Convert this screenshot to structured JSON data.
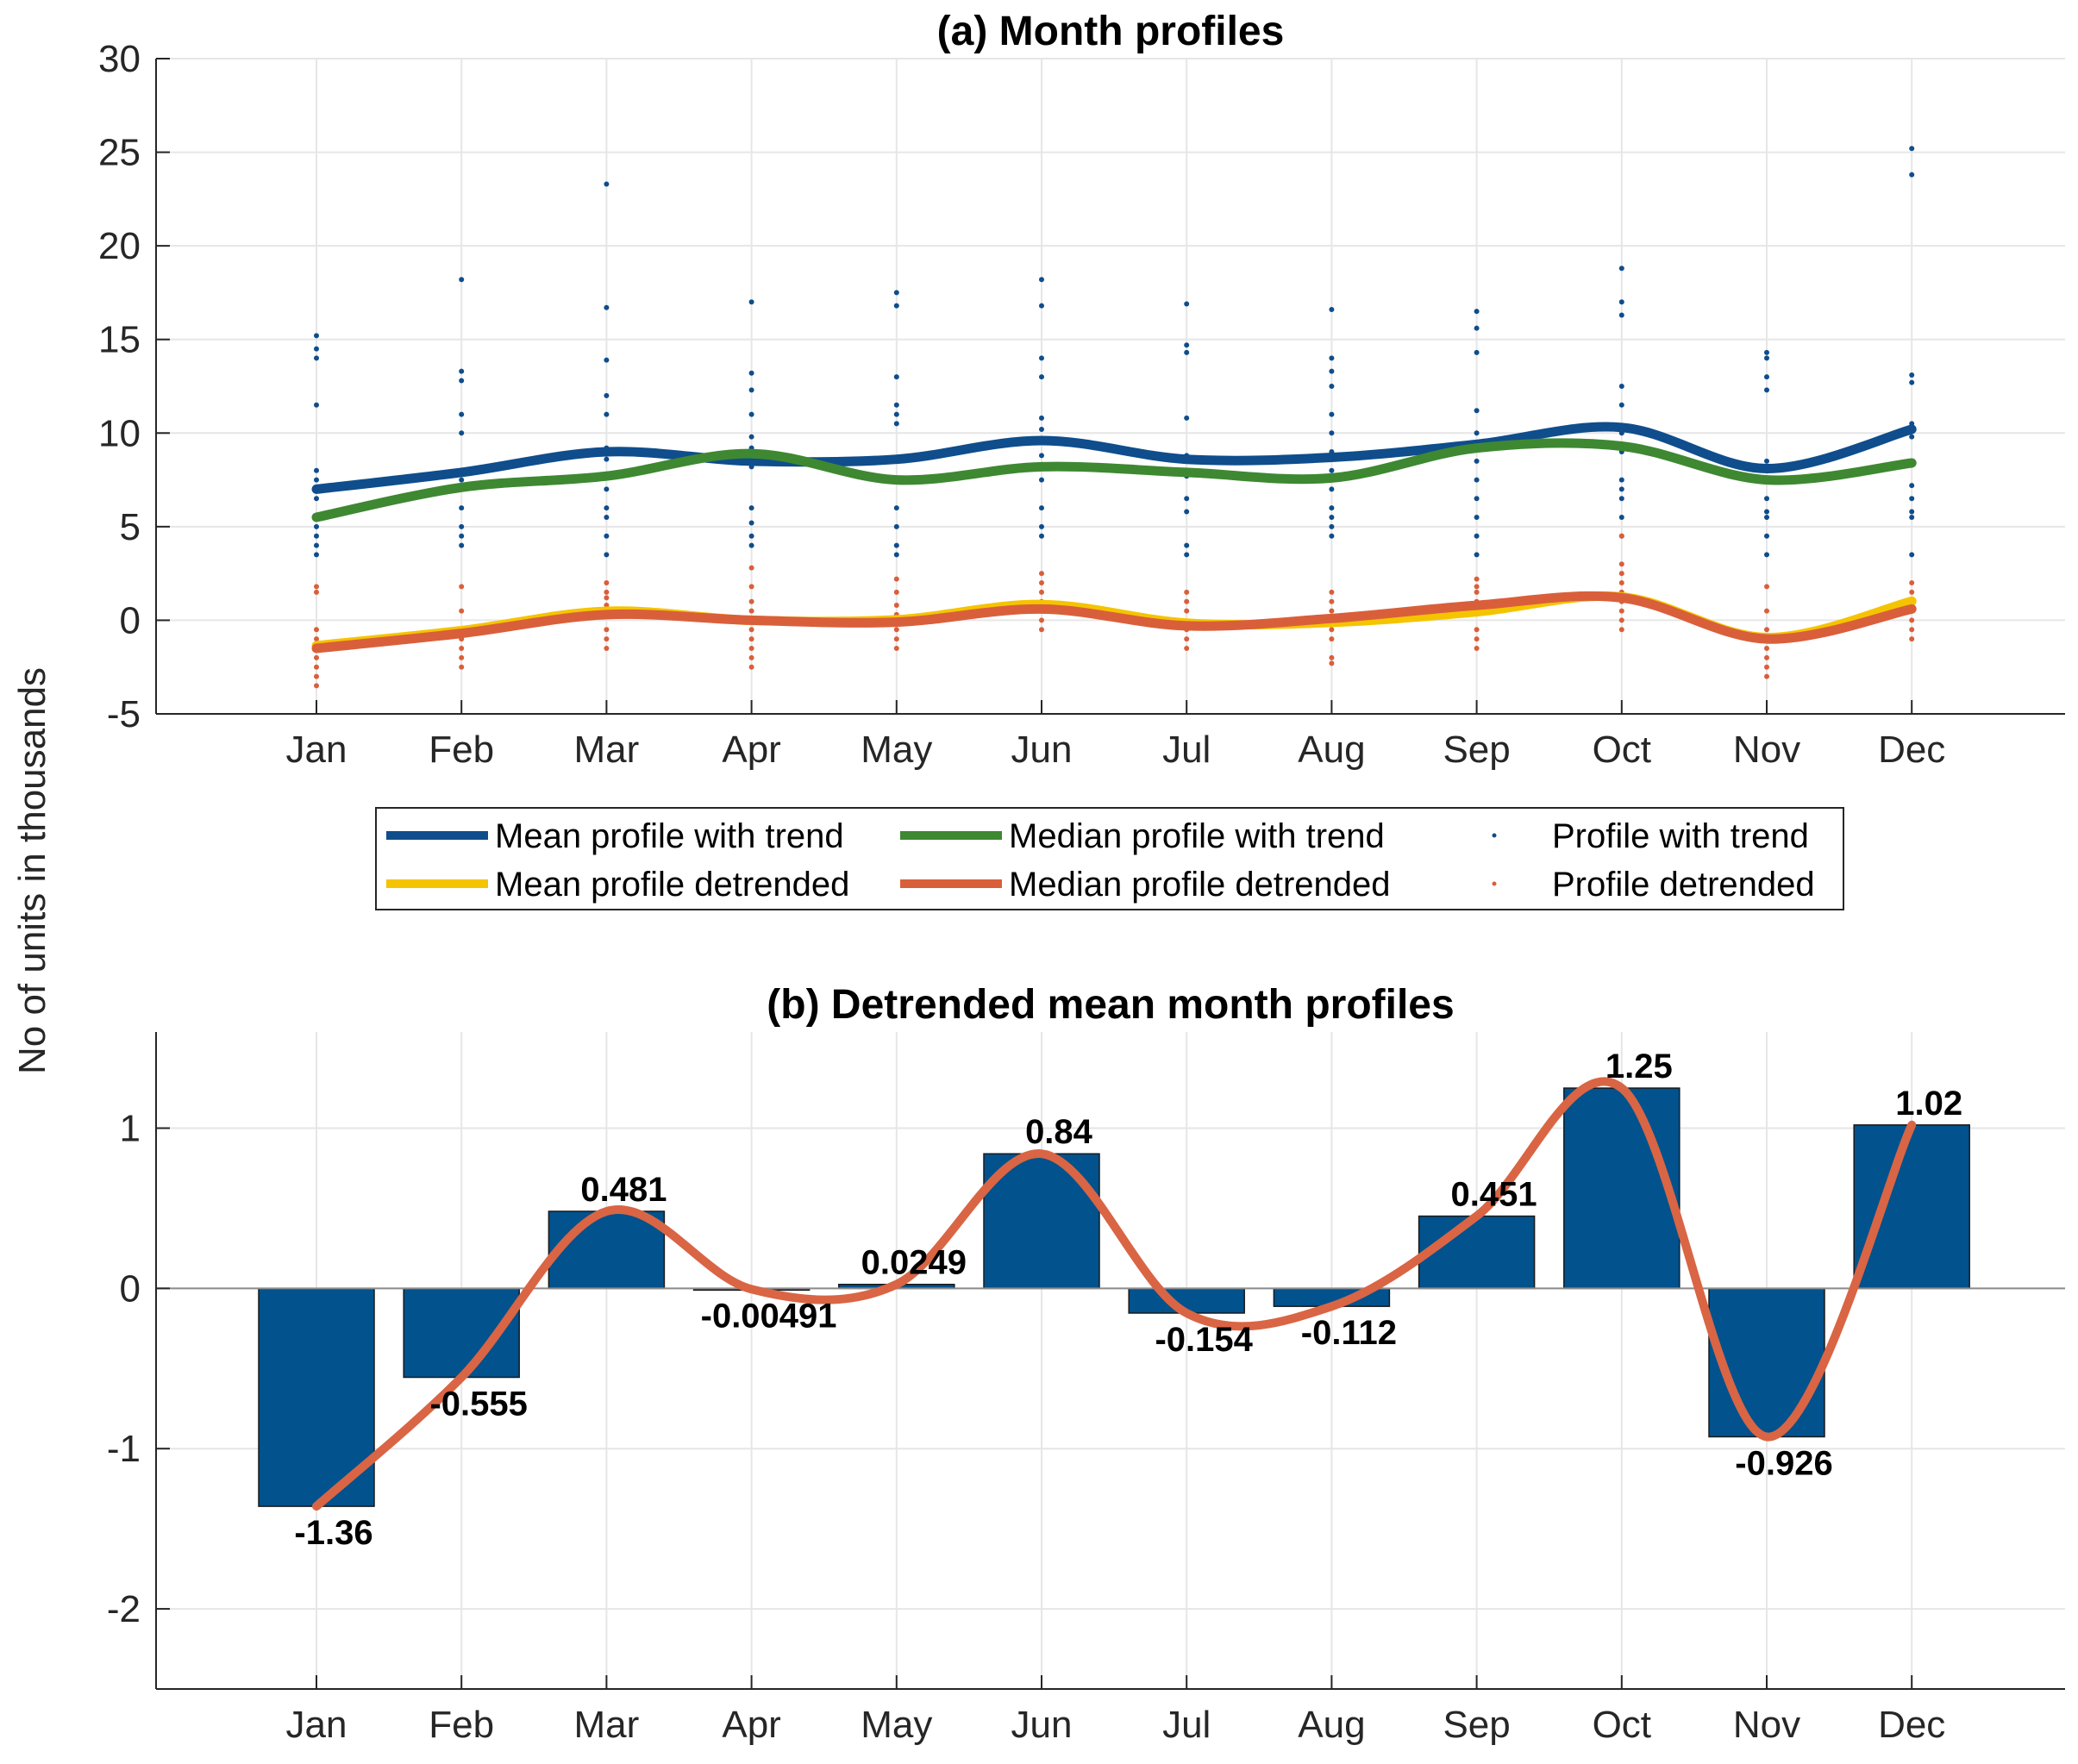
{
  "shared": {
    "ylabel": "No of units in thousands",
    "months": [
      "Jan",
      "Feb",
      "Mar",
      "Apr",
      "May",
      "Jun",
      "Jul",
      "Aug",
      "Sep",
      "Oct",
      "Nov",
      "Dec"
    ]
  },
  "chart_data": [
    {
      "type": "line",
      "title": "(a) Month profiles",
      "xlabel": "",
      "ylabel": "No of units in thousands",
      "ylim": [
        -5,
        30
      ],
      "yticks": [
        30,
        25,
        20,
        15,
        10,
        5,
        0,
        -5
      ],
      "grid": true,
      "categories": [
        "Jan",
        "Feb",
        "Mar",
        "Apr",
        "May",
        "Jun",
        "Jul",
        "Aug",
        "Sep",
        "Oct",
        "Nov",
        "Dec"
      ],
      "series": [
        {
          "name": "Mean profile with trend",
          "color": "#0f4d8c",
          "values": [
            7.0,
            7.9,
            9.0,
            8.5,
            8.6,
            9.6,
            8.6,
            8.7,
            9.4,
            10.3,
            8.1,
            10.2
          ]
        },
        {
          "name": "Median profile with trend",
          "color": "#3e8832",
          "values": [
            5.5,
            7.1,
            7.7,
            8.9,
            7.5,
            8.2,
            7.9,
            7.6,
            9.2,
            9.3,
            7.5,
            8.4
          ]
        },
        {
          "name": "Profile with trend",
          "color": "#0f4d8c",
          "marker": "dot",
          "values": [
            [
              15.2,
              14.5,
              14.0,
              11.5,
              8.0,
              7.5,
              6.5,
              5.5,
              5.0,
              4.5,
              4.0,
              3.5
            ],
            [
              18.2,
              13.3,
              12.8,
              11.0,
              10.0,
              8.0,
              7.5,
              6.0,
              5.0,
              4.5,
              4.0
            ],
            [
              23.3,
              16.7,
              13.9,
              12.0,
              11.0,
              9.2,
              8.6,
              7.0,
              6.0,
              5.5,
              4.5,
              3.5
            ],
            [
              17.0,
              13.2,
              12.3,
              11.0,
              9.8,
              9.2,
              8.2,
              6.0,
              5.2,
              4.5,
              4.0
            ],
            [
              17.5,
              16.8,
              13.0,
              11.5,
              11.0,
              10.5,
              8.5,
              7.5,
              6.0,
              5.0,
              4.0,
              3.5
            ],
            [
              18.2,
              16.8,
              14.0,
              13.0,
              10.8,
              10.2,
              8.8,
              7.5,
              6.0,
              5.0,
              4.5
            ],
            [
              16.9,
              14.7,
              14.3,
              10.8,
              8.8,
              7.7,
              6.5,
              5.8,
              4.0,
              3.5
            ],
            [
              16.6,
              14.0,
              13.3,
              12.5,
              11.0,
              10.0,
              9.0,
              8.0,
              7.0,
              6.0,
              5.5,
              5.0,
              4.5
            ],
            [
              16.5,
              15.6,
              14.3,
              11.2,
              10.0,
              9.5,
              8.5,
              7.5,
              6.5,
              5.5,
              4.5,
              3.5
            ],
            [
              18.8,
              17.0,
              16.3,
              12.5,
              11.5,
              10.0,
              9.0,
              7.5,
              7.0,
              6.5,
              5.5,
              4.5
            ],
            [
              14.3,
              14.0,
              13.0,
              12.3,
              8.5,
              8.0,
              6.5,
              5.8,
              5.5,
              4.5,
              3.5
            ],
            [
              25.2,
              23.8,
              13.1,
              12.7,
              10.5,
              9.8,
              7.2,
              6.5,
              5.8,
              5.5,
              3.5
            ]
          ]
        },
        {
          "name": "Mean profile detrended",
          "color": "#f5c400",
          "values": [
            -1.36,
            -0.555,
            0.481,
            -0.00491,
            0.0249,
            0.84,
            -0.154,
            -0.112,
            0.451,
            1.25,
            -0.926,
            1.02
          ]
        },
        {
          "name": "Median profile detrended",
          "color": "#d95f3b",
          "values": [
            -1.5,
            -0.7,
            0.3,
            0.0,
            -0.1,
            0.6,
            -0.3,
            0.1,
            0.8,
            1.2,
            -1.0,
            0.6
          ]
        },
        {
          "name": "Profile detrended",
          "color": "#d95f3b",
          "marker": "dot",
          "values": [
            [
              1.8,
              1.5,
              -0.5,
              -1.0,
              -1.5,
              -2.0,
              -2.5,
              -3.0,
              -3.5
            ],
            [
              1.8,
              0.5,
              -0.5,
              -1.0,
              -1.5,
              -2.0,
              -2.5
            ],
            [
              2.0,
              1.5,
              1.2,
              0.8,
              0.5,
              -0.5,
              -1.0,
              -1.5
            ],
            [
              2.8,
              1.8,
              1.0,
              0.5,
              -0.5,
              -1.0,
              -1.5,
              -2.0,
              -2.5
            ],
            [
              2.2,
              1.5,
              0.8,
              0.3,
              -0.5,
              -1.0,
              -1.5
            ],
            [
              2.5,
              2.0,
              1.5,
              1.0,
              0.5,
              0.0,
              -0.5
            ],
            [
              1.5,
              1.0,
              0.5,
              -0.5,
              -1.0,
              -1.5
            ],
            [
              1.5,
              1.0,
              0.5,
              -0.5,
              -1.0,
              -2.0,
              -2.3
            ],
            [
              2.2,
              1.8,
              1.5,
              1.0,
              0.5,
              -0.5,
              -1.0,
              -1.5
            ],
            [
              4.5,
              3.0,
              2.5,
              2.0,
              1.5,
              1.0,
              0.5,
              0.0,
              -0.5
            ],
            [
              1.8,
              0.5,
              -0.5,
              -1.0,
              -1.5,
              -2.0,
              -2.5,
              -3.0
            ],
            [
              2.0,
              1.5,
              1.0,
              0.5,
              0.0,
              -0.5,
              -1.0
            ]
          ]
        }
      ],
      "legend": {
        "placement": "below-plot",
        "entries": [
          "Mean profile with trend",
          "Median profile with trend",
          "Profile with trend",
          "Mean profile detrended",
          "Median profile detrended",
          "Profile detrended"
        ]
      }
    },
    {
      "type": "bar",
      "title": "(b) Detrended mean month profiles",
      "xlabel": "",
      "ylabel": "No of units in thousands",
      "ylim": [
        -2.5,
        1.6
      ],
      "yticks": [
        1,
        0,
        -1,
        -2
      ],
      "grid": true,
      "categories": [
        "Jan",
        "Feb",
        "Mar",
        "Apr",
        "May",
        "Jun",
        "Jul",
        "Aug",
        "Sep",
        "Oct",
        "Nov",
        "Dec"
      ],
      "values": [
        -1.36,
        -0.555,
        0.481,
        -0.00491,
        0.0249,
        0.84,
        -0.154,
        -0.112,
        0.451,
        1.25,
        -0.926,
        1.02
      ],
      "data_labels": [
        "-1.36",
        "-0.555",
        "0.481",
        "-0.00491",
        "0.0249",
        "0.84",
        "-0.154",
        "-0.112",
        "0.451",
        "1.25",
        "-0.926",
        "1.02"
      ],
      "bar_color": "#02528d",
      "overlay_line": {
        "name": "smoothed curve",
        "color": "#d96544",
        "values": [
          -1.36,
          -0.555,
          0.481,
          -0.00491,
          0.0249,
          0.84,
          -0.154,
          -0.112,
          0.451,
          1.25,
          -0.926,
          1.02
        ]
      }
    }
  ]
}
